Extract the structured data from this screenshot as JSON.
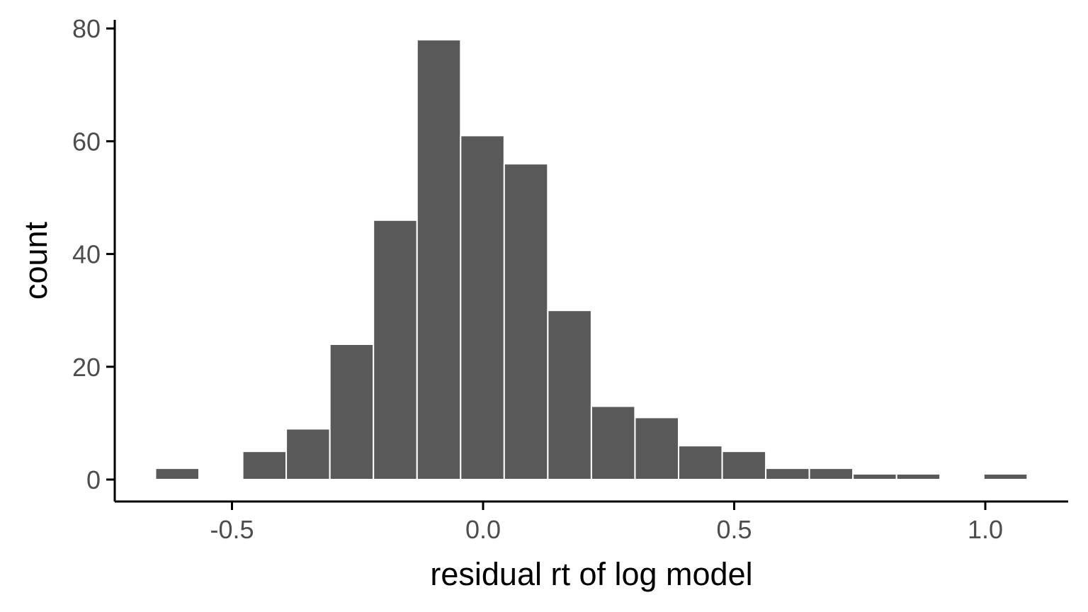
{
  "chart_data": {
    "type": "bar",
    "subtype": "histogram",
    "xlabel": "residual rt of log model",
    "ylabel": "count",
    "xlim": [
      -0.7,
      1.2
    ],
    "ylim": [
      -4,
      82
    ],
    "x_ticks": [
      -0.5,
      0.0,
      0.5,
      1.0
    ],
    "x_tick_labels": [
      "-0.5",
      "0.0",
      "0.5",
      "1.0"
    ],
    "y_ticks": [
      0,
      20,
      40,
      60,
      80
    ],
    "y_tick_labels": [
      "0",
      "20",
      "40",
      "60",
      "80"
    ],
    "bin_width": 0.0868,
    "bin_centers": [
      -0.6089,
      -0.5221,
      -0.4353,
      -0.3485,
      -0.2617,
      -0.1749,
      -0.0881,
      -0.0013,
      0.0855,
      0.1723,
      0.2591,
      0.3459,
      0.4327,
      0.5195,
      0.6063,
      0.6931,
      0.7799,
      0.8667,
      0.9535,
      1.0403
    ],
    "values": [
      2,
      0,
      5,
      9,
      24,
      46,
      78,
      61,
      56,
      30,
      13,
      11,
      6,
      5,
      2,
      2,
      1,
      1,
      0,
      1
    ],
    "bar_color": "#595959",
    "bar_outline": "#ffffff",
    "grid": false,
    "legend": "none"
  }
}
